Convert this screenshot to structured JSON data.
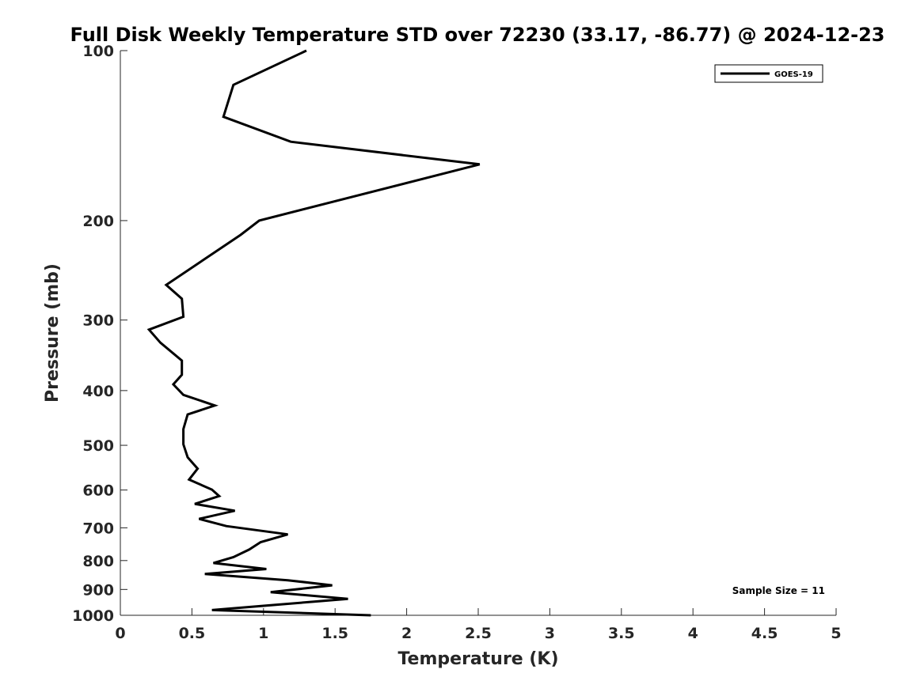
{
  "chart_data": {
    "type": "line",
    "title": "Full Disk Weekly Temperature STD over 72230 (33.17, -86.77) @ 2024-12-23",
    "xlabel": "Temperature (K)",
    "ylabel": "Pressure (mb)",
    "xlim": [
      0,
      5
    ],
    "ylim": [
      1000,
      100
    ],
    "yscale": "log",
    "y_reversed": true,
    "grid": false,
    "legend_position": "top-right",
    "xticks": [
      0,
      0.5,
      1,
      1.5,
      2,
      2.5,
      3,
      3.5,
      4,
      4.5,
      5
    ],
    "xtick_labels": [
      "0",
      "0.5",
      "1",
      "1.5",
      "2",
      "2.5",
      "3",
      "3.5",
      "4",
      "4.5",
      "5"
    ],
    "yticks": [
      100,
      200,
      300,
      400,
      500,
      600,
      700,
      800,
      900,
      1000
    ],
    "ytick_labels": [
      "100",
      "200",
      "300",
      "400",
      "500",
      "600",
      "700",
      "800",
      "900",
      "1000"
    ],
    "series": [
      {
        "name": "GOES-19",
        "color": "#000000",
        "x": [
          1.3,
          0.79,
          0.72,
          1.19,
          2.51,
          0.97,
          0.84,
          0.32,
          0.43,
          0.44,
          0.2,
          0.28,
          0.43,
          0.43,
          0.37,
          0.44,
          0.66,
          0.47,
          0.44,
          0.44,
          0.47,
          0.54,
          0.48,
          0.64,
          0.69,
          0.52,
          0.8,
          0.55,
          0.74,
          1.17,
          0.98,
          0.9,
          0.79,
          0.65,
          1.02,
          0.59,
          1.17,
          1.48,
          1.05,
          1.59,
          0.64,
          1.75
        ],
        "y": [
          100,
          115,
          131,
          145,
          159,
          200,
          212,
          260,
          275,
          296,
          312,
          329,
          354,
          375,
          390,
          407,
          425,
          441,
          468,
          498,
          525,
          550,
          575,
          599,
          615,
          635,
          653,
          675,
          695,
          719,
          742,
          765,
          789,
          808,
          828,
          845,
          867,
          885,
          910,
          935,
          979,
          1000
        ]
      }
    ],
    "annotations": [
      {
        "text": "Sample Size = 11"
      }
    ]
  }
}
